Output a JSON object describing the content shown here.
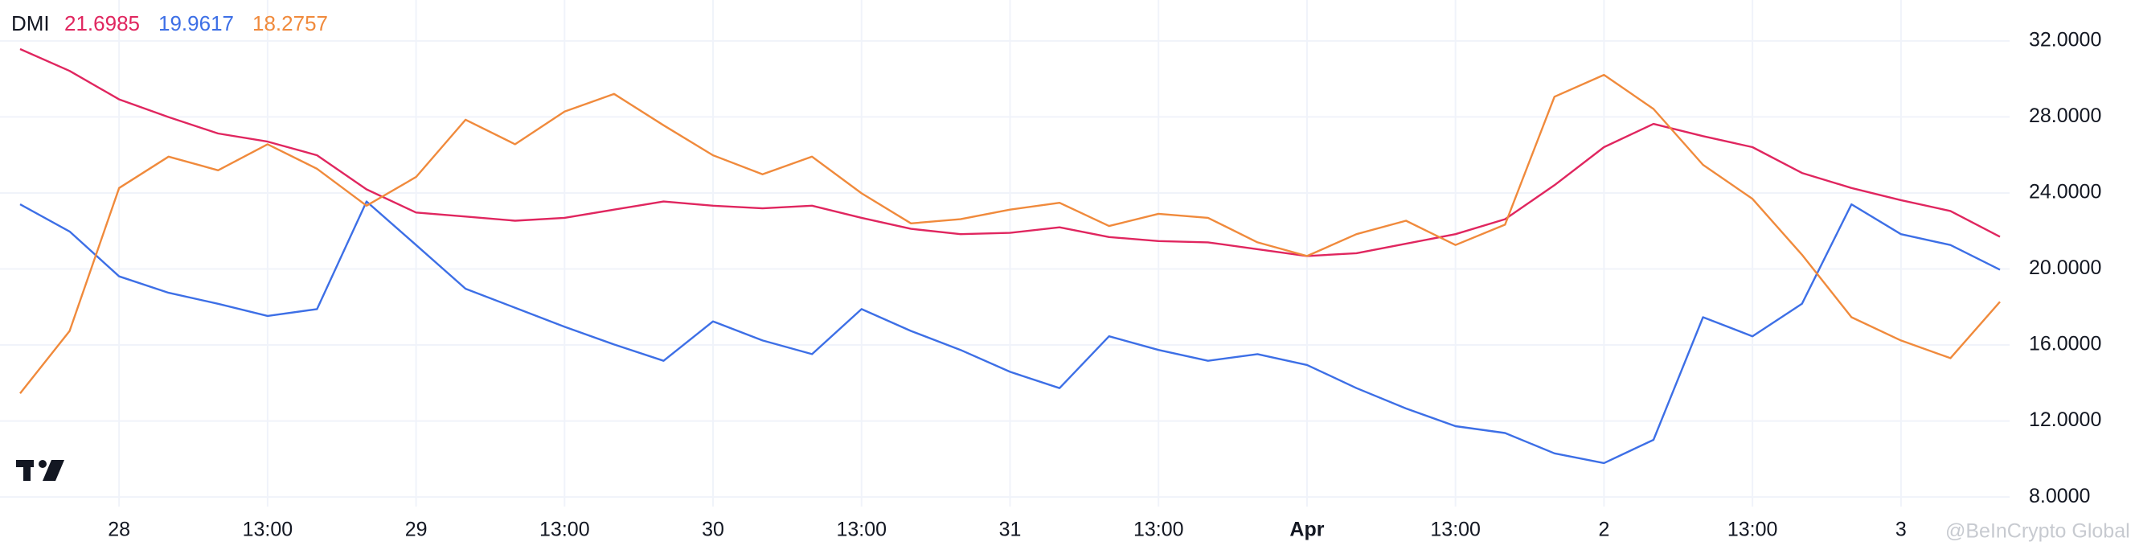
{
  "chart_data": {
    "type": "line",
    "indicator": "DMI",
    "watermark": "@BeInCrypto Global",
    "categories": [
      null,
      null,
      "28",
      null,
      null,
      "13:00",
      null,
      null,
      "29",
      null,
      null,
      "13:00",
      null,
      null,
      "30",
      null,
      null,
      "13:00",
      null,
      null,
      "31",
      null,
      null,
      "13:00",
      null,
      null,
      "Apr",
      null,
      null,
      "13:00",
      null,
      null,
      "2",
      null,
      null,
      "13:00",
      null,
      null,
      "3",
      null,
      null
    ],
    "series": [
      {
        "color": "#e0265f",
        "values": [
          31.57,
          30.42,
          28.92,
          27.99,
          27.13,
          26.7,
          25.98,
          24.19,
          22.97,
          22.76,
          22.54,
          22.69,
          23.12,
          23.55,
          23.33,
          23.19,
          23.33,
          22.69,
          22.11,
          21.83,
          21.9,
          22.19,
          21.68,
          21.47,
          21.4,
          21.04,
          20.68,
          20.83,
          21.33,
          21.83,
          22.62,
          24.41,
          26.41,
          27.63,
          26.99,
          26.41,
          25.05,
          24.26,
          23.62,
          23.05,
          21.6985
        ]
      },
      {
        "color": "#3d6fe6",
        "values": [
          23.4,
          21.97,
          19.61,
          18.75,
          18.17,
          17.53,
          17.89,
          23.55,
          21.26,
          18.96,
          17.96,
          16.96,
          16.03,
          15.17,
          17.24,
          16.24,
          15.52,
          17.89,
          16.74,
          15.74,
          14.59,
          13.73,
          16.46,
          15.74,
          15.17,
          15.52,
          14.95,
          13.73,
          12.66,
          11.73,
          11.37,
          10.3,
          9.79,
          11.01,
          17.46,
          16.46,
          18.17,
          23.4,
          21.83,
          21.26,
          19.9617
        ]
      },
      {
        "color": "#f08a3c",
        "values": [
          13.45,
          16.74,
          24.26,
          25.91,
          25.19,
          26.56,
          25.27,
          23.33,
          24.84,
          27.85,
          26.56,
          28.28,
          29.21,
          27.56,
          25.98,
          24.98,
          25.91,
          23.98,
          22.4,
          22.62,
          23.12,
          23.48,
          22.26,
          22.9,
          22.69,
          21.4,
          20.68,
          21.83,
          22.54,
          21.26,
          22.33,
          29.06,
          30.21,
          28.42,
          25.48,
          23.69,
          20.75,
          17.46,
          16.24,
          15.31,
          18.2757
        ]
      }
    ],
    "ylim": [
      7.5,
      34.15
    ],
    "yticks": [
      {
        "value": 8,
        "label": "8.0000"
      },
      {
        "value": 12,
        "label": "12.0000"
      },
      {
        "value": 16,
        "label": "16.0000"
      },
      {
        "value": 20,
        "label": "20.0000"
      },
      {
        "value": 24,
        "label": "24.0000"
      },
      {
        "value": 28,
        "label": "28.0000"
      },
      {
        "value": 32,
        "label": "32.0000"
      }
    ],
    "grid": true
  }
}
